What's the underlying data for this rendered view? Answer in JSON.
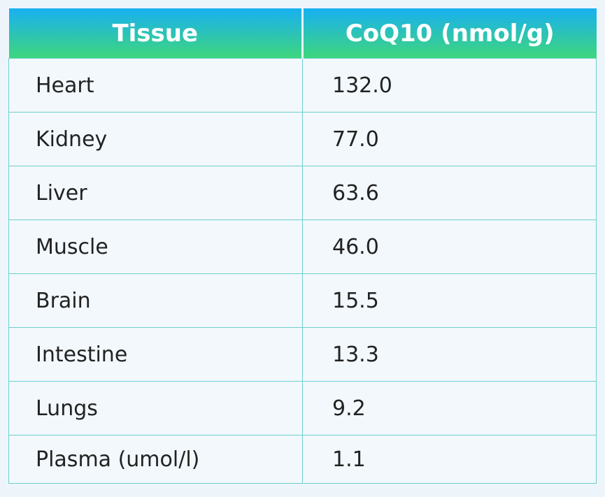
{
  "chart_data": {
    "type": "table",
    "columns": [
      "Tissue",
      "CoQ10 (nmol/g)"
    ],
    "rows": [
      [
        "Heart",
        "132.0"
      ],
      [
        "Kidney",
        "77.0"
      ],
      [
        "Liver",
        "63.6"
      ],
      [
        "Muscle",
        "46.0"
      ],
      [
        "Brain",
        "15.5"
      ],
      [
        "Intestine",
        "13.3"
      ],
      [
        "Lungs",
        "9.2"
      ],
      [
        "Plasma (umol/l)",
        "1.1"
      ]
    ],
    "header_gradient": [
      "#18b0f2",
      "#3ed67c"
    ],
    "border_color": "#6fcfcf"
  }
}
